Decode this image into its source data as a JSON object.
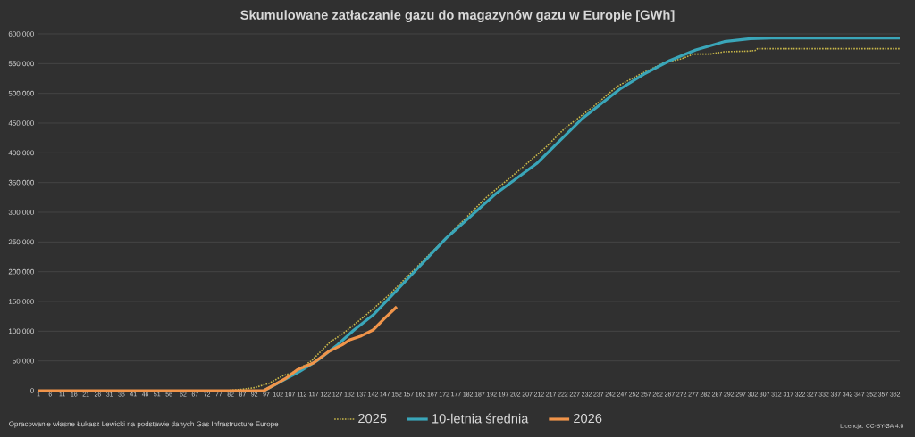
{
  "chart_data": {
    "type": "line",
    "title": "Skumulowane zatłaczanie gazu do magazynów gazu w Europie [GWh]",
    "annotations": [
      "Opracowanie własne Łukasz Lewicki na podstawie danych Gas Infrastructure Europe",
      "Licencja: CC-BY-SA 4.0"
    ],
    "xlim": [
      1,
      364
    ],
    "xticks": [
      1,
      6,
      11,
      16,
      21,
      26,
      31,
      36,
      41,
      46,
      51,
      56,
      62,
      67,
      72,
      77,
      82,
      87,
      92,
      97,
      102,
      107,
      112,
      117,
      122,
      127,
      132,
      137,
      142,
      147,
      152,
      157,
      162,
      167,
      172,
      177,
      182,
      187,
      192,
      197,
      202,
      207,
      212,
      217,
      222,
      227,
      232,
      237,
      242,
      247,
      252,
      257,
      262,
      267,
      272,
      277,
      282,
      287,
      292,
      297,
      302,
      307,
      312,
      317,
      322,
      327,
      332,
      337,
      342,
      347,
      352,
      357,
      362
    ],
    "ylim": [
      0,
      600000
    ],
    "yticks": [
      0,
      {
        "value": 50000,
        "label": "50 000"
      },
      {
        "value": 100000,
        "label": "100 000"
      },
      {
        "value": 150000,
        "label": "150 000"
      },
      {
        "value": 200000,
        "label": "200 000"
      },
      {
        "value": 250000,
        "label": "250 000"
      },
      {
        "value": 300000,
        "label": "300 000"
      },
      {
        "value": 350000,
        "label": "350 000"
      },
      {
        "value": 400000,
        "label": "400 000"
      },
      {
        "value": 450000,
        "label": "450 000"
      },
      {
        "value": 500000,
        "label": "500 000"
      },
      {
        "value": 550000,
        "label": "550 000"
      },
      {
        "value": 600000,
        "label": "600 000"
      }
    ],
    "grid": "y",
    "legend": "bottom",
    "marker": "none",
    "series": [
      {
        "name": "2025",
        "color": "#c9b84a",
        "line_style": "dotted",
        "x": [
          1,
          80,
          86,
          92,
          98,
          104,
          109,
          116,
          124,
          129,
          139,
          149,
          190,
          204,
          215,
          223,
          235,
          245,
          256,
          265,
          272,
          277,
          284,
          290,
          300,
          303,
          304,
          330,
          364
        ],
        "values": [
          0,
          0,
          2000,
          5000,
          12000,
          25000,
          32000,
          50000,
          82000,
          95000,
          127000,
          162000,
          326000,
          372000,
          410000,
          442000,
          478000,
          512000,
          535000,
          552000,
          558000,
          566000,
          566000,
          570000,
          571000,
          572000,
          575000,
          575000,
          575000
        ]
      },
      {
        "name": "10-letnia średnia",
        "color": "#3aa6b9",
        "line_style": "solid",
        "x": [
          96,
          104,
          111,
          119,
          127,
          134,
          142,
          154,
          173,
          194,
          211,
          230,
          246,
          256,
          267,
          278,
          290,
          301,
          310,
          364
        ],
        "values": [
          0,
          17000,
          32000,
          52000,
          77000,
          102000,
          127000,
          177000,
          257000,
          332000,
          382000,
          457000,
          507000,
          532000,
          555000,
          573000,
          587000,
          592000,
          593000,
          593000
        ]
      },
      {
        "name": "2026",
        "color": "#f0944a",
        "line_style": "solid",
        "x": [
          1,
          96,
          105,
          110,
          117,
          123,
          129,
          132,
          137,
          142,
          147,
          152
        ],
        "values": [
          0,
          0,
          20000,
          35000,
          47000,
          65000,
          77000,
          85000,
          92000,
          102000,
          122000,
          141000
        ]
      }
    ]
  }
}
